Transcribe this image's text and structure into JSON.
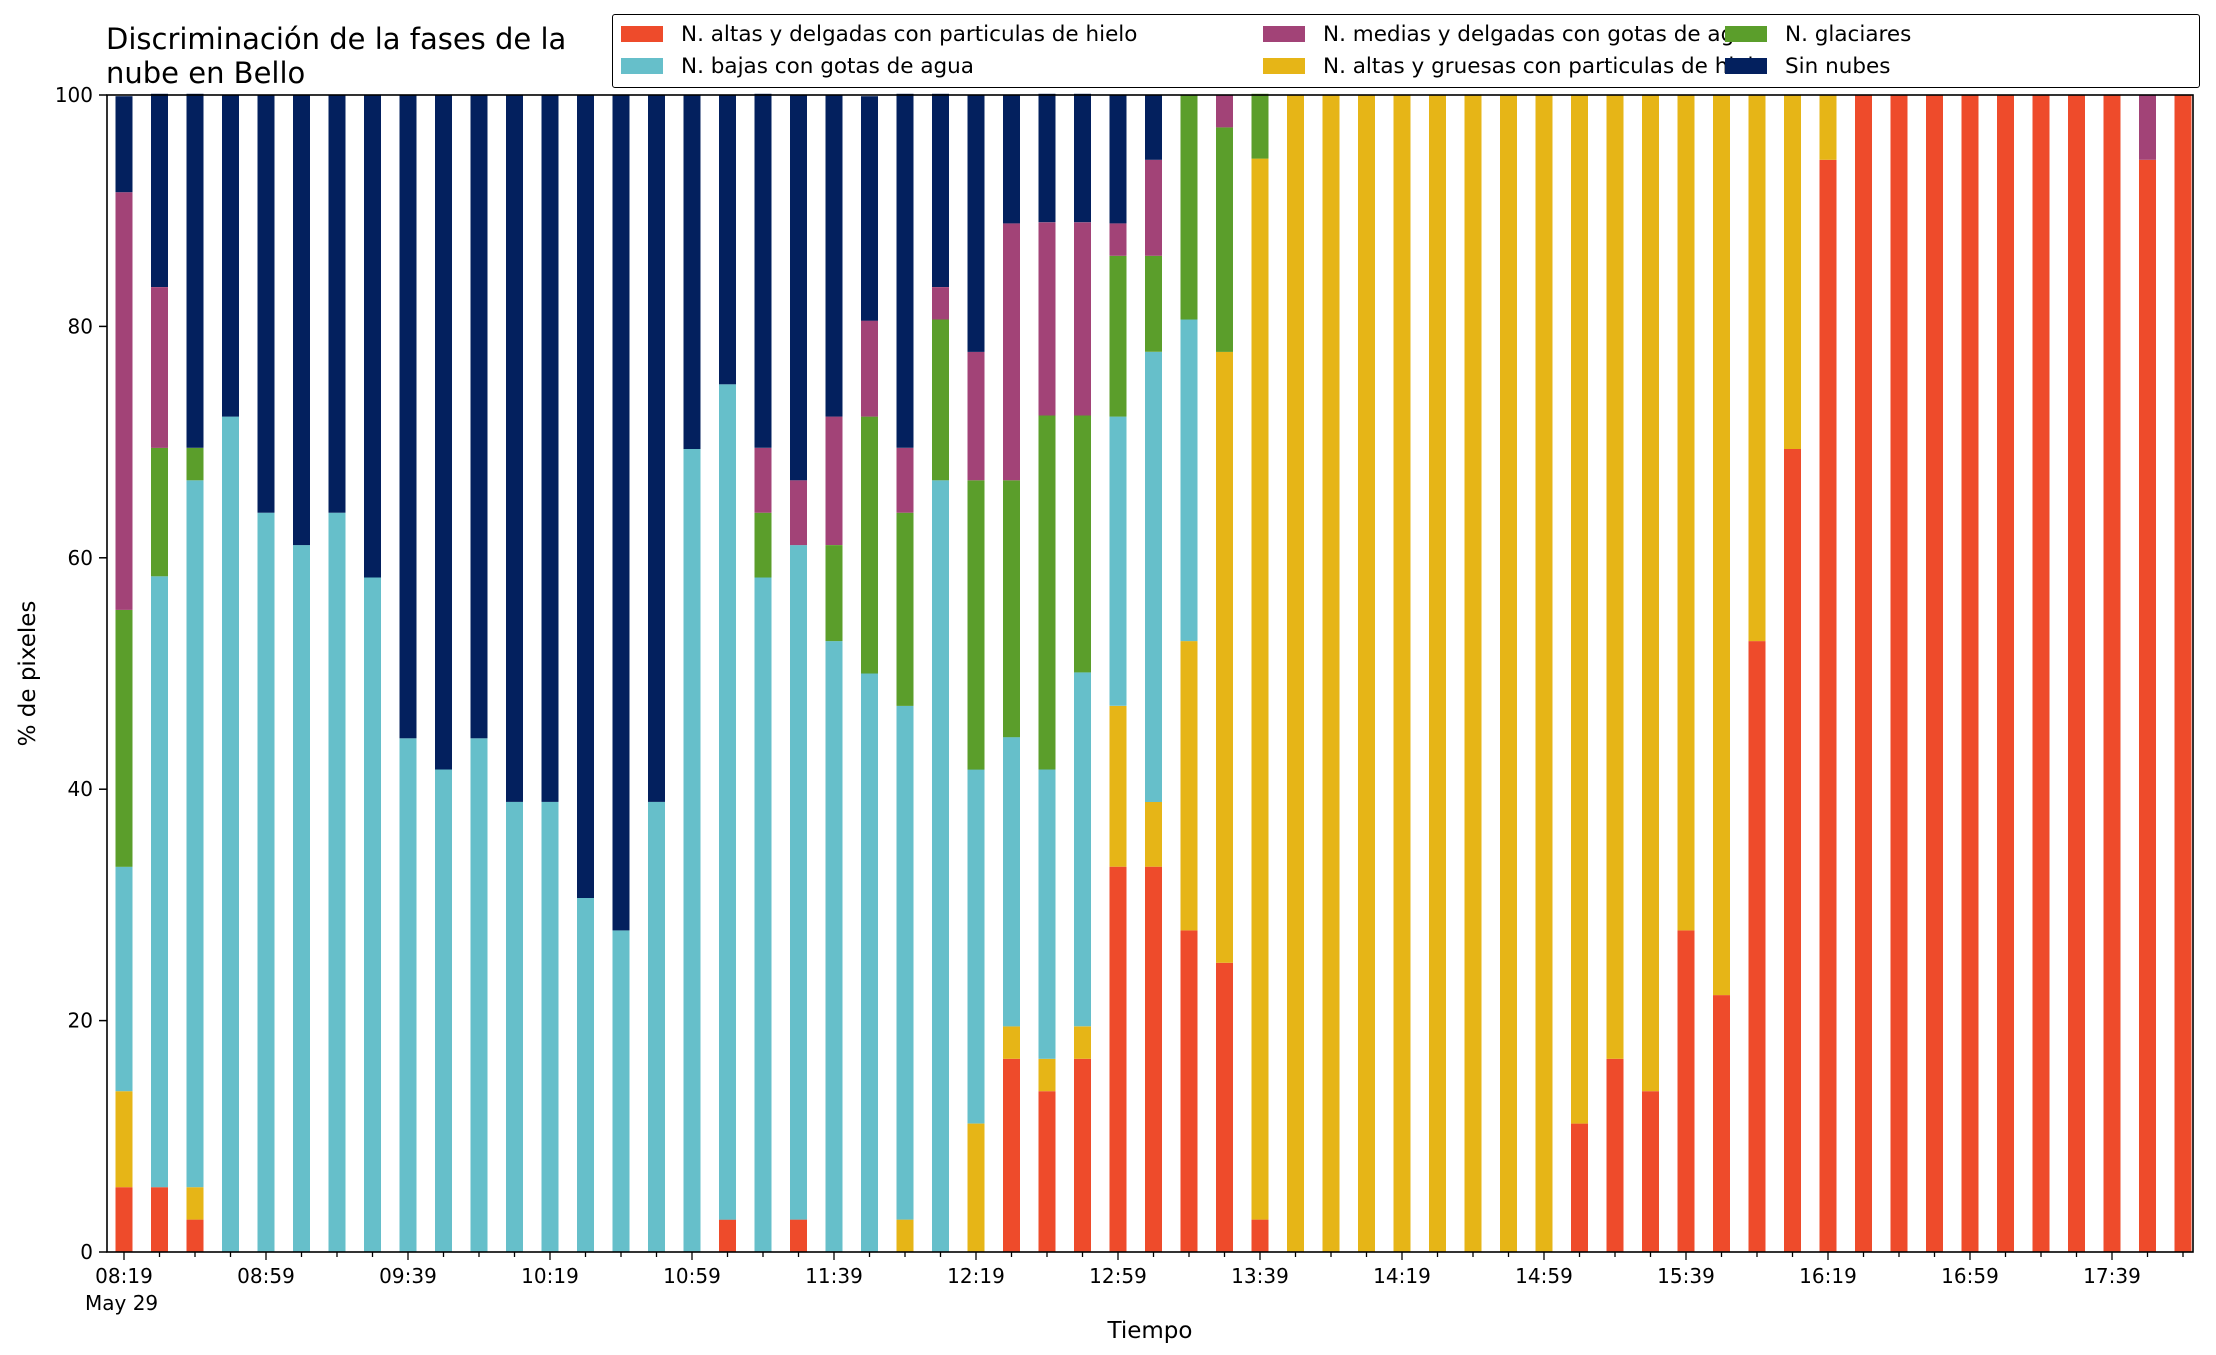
{
  "chart_data": {
    "type": "bar",
    "stacked": true,
    "title": "Discriminación de la fases de la\nnube en Bello",
    "xlabel": "Tiempo",
    "ylabel": "% de pixeles",
    "ylim": [
      0,
      100
    ],
    "yticks": [
      "0",
      "20",
      "40",
      "60",
      "80",
      "100"
    ],
    "xtick_labels": [
      "08:19",
      "08:59",
      "09:39",
      "10:19",
      "10:59",
      "11:39",
      "12:19",
      "12:59",
      "13:39",
      "14:19",
      "14:59",
      "15:39",
      "16:19",
      "16:59",
      "17:39"
    ],
    "xtick_date": "May 29",
    "grid": false,
    "legend_position": "top",
    "legend_order": [
      0,
      2,
      4,
      1,
      3,
      5
    ],
    "series": [
      {
        "name": "N. altas y delgadas con particulas de hielo",
        "color": "#ee4b2b",
        "values": [
          5.6,
          5.6,
          2.8,
          0,
          0,
          0,
          0,
          0,
          0,
          0,
          0,
          0,
          0,
          0,
          0,
          0,
          0,
          2.8,
          0,
          2.8,
          0,
          0,
          0,
          0,
          0,
          16.7,
          13.9,
          16.7,
          33.3,
          33.3,
          27.8,
          25,
          2.8,
          0,
          0,
          0,
          0,
          0,
          0,
          0,
          0,
          11.1,
          16.7,
          13.9,
          27.8,
          22.2,
          52.8,
          69.4,
          94.4,
          100,
          100,
          100,
          100,
          100,
          100,
          100,
          100,
          94.4,
          100
        ]
      },
      {
        "name": "N. altas y gruesas con particulas de hielo",
        "color": "#e6b517",
        "values": [
          8.3,
          0,
          2.8,
          0,
          0,
          0,
          0,
          0,
          0,
          0,
          0,
          0,
          0,
          0,
          0,
          0,
          0,
          0,
          0,
          0,
          0,
          0,
          2.8,
          0,
          11.1,
          2.8,
          2.8,
          2.8,
          13.9,
          5.6,
          25,
          52.8,
          91.7,
          100,
          100,
          100,
          100,
          100,
          100,
          100,
          100,
          88.9,
          83.3,
          86.1,
          72.2,
          77.8,
          47.2,
          30.6,
          5.6,
          0,
          0,
          0,
          0,
          0,
          0,
          0,
          0,
          0,
          0
        ]
      },
      {
        "name": "N. bajas con gotas de agua",
        "color": "#66bfca",
        "values": [
          19.4,
          52.8,
          61.1,
          72.2,
          63.9,
          61.1,
          63.9,
          58.3,
          44.4,
          41.7,
          44.4,
          38.9,
          38.9,
          30.6,
          27.8,
          38.9,
          69.4,
          72.2,
          58.3,
          58.3,
          52.8,
          50,
          44.4,
          66.7,
          30.6,
          25,
          25,
          30.6,
          25,
          38.9,
          27.8,
          0,
          0,
          0,
          0,
          0,
          0,
          0,
          0,
          0,
          0,
          0,
          0,
          0,
          0,
          0,
          0,
          0,
          0,
          0,
          0,
          0,
          0,
          0,
          0,
          0,
          0,
          0,
          0
        ]
      },
      {
        "name": "N. glaciares",
        "color": "#5b9e2b",
        "values": [
          22.2,
          11.1,
          2.8,
          0,
          0,
          0,
          0,
          0,
          0,
          0,
          0,
          0,
          0,
          0,
          0,
          0,
          0,
          0,
          5.6,
          0,
          8.3,
          22.2,
          16.7,
          13.9,
          25,
          22.2,
          30.6,
          22.2,
          13.9,
          8.3,
          19.4,
          19.4,
          5.6,
          0,
          0,
          0,
          0,
          0,
          0,
          0,
          0,
          0,
          0,
          0,
          0,
          0,
          0,
          0,
          0,
          0,
          0,
          0,
          0,
          0,
          0,
          0,
          0,
          0,
          0
        ]
      },
      {
        "name": "N. medias y delgadas con gotas de agua",
        "color": "#a24377",
        "values": [
          36.1,
          13.9,
          0,
          0,
          0,
          0,
          0,
          0,
          0,
          0,
          0,
          0,
          0,
          0,
          0,
          0,
          0,
          0,
          5.6,
          5.6,
          11.1,
          8.3,
          5.6,
          2.8,
          11.1,
          22.2,
          16.7,
          16.7,
          2.8,
          8.3,
          0,
          2.8,
          0,
          0,
          0,
          0,
          0,
          0,
          0,
          0,
          0,
          0,
          0,
          0,
          0,
          0,
          0,
          0,
          0,
          0,
          0,
          0,
          0,
          0,
          0,
          0,
          0,
          5.6,
          0
        ]
      },
      {
        "name": "Sin nubes",
        "color": "#03205e",
        "values": [
          8.3,
          16.7,
          30.6,
          27.8,
          36.1,
          38.9,
          36.1,
          41.7,
          55.6,
          58.3,
          55.6,
          61.1,
          61.1,
          69.4,
          72.2,
          61.1,
          30.6,
          25,
          30.6,
          33.3,
          27.8,
          19.4,
          30.6,
          16.7,
          22.2,
          11.1,
          11.1,
          11.1,
          11.1,
          5.6,
          0,
          0,
          0,
          0,
          0,
          0,
          0,
          0,
          0,
          0,
          0,
          0,
          0,
          0,
          0,
          0,
          0,
          0,
          0,
          0,
          0,
          0,
          0,
          0,
          0,
          0,
          0,
          0,
          0
        ]
      }
    ]
  }
}
